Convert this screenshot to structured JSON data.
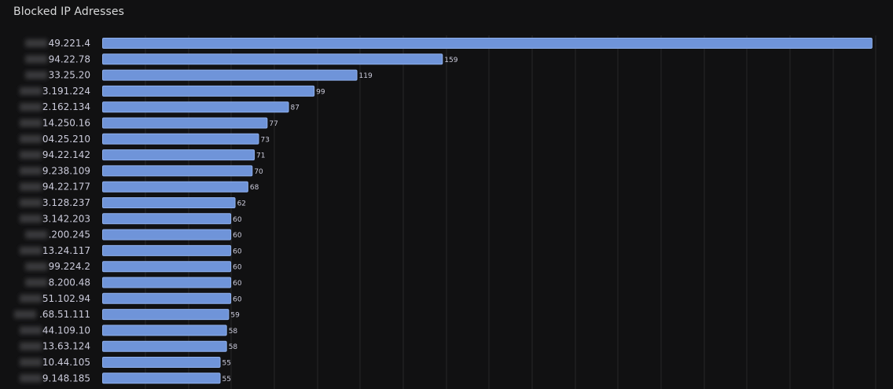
{
  "panel": {
    "title": "Blocked IP Adresses"
  },
  "colors": {
    "background": "#111112",
    "bar_fill": "#6f94d9",
    "bar_stroke": "#8fb0ec",
    "grid": "#262628",
    "text": "#ccccdc"
  },
  "chart_data": {
    "type": "bar",
    "orientation": "horizontal",
    "title": "Blocked IP Adresses",
    "categories": [
      "49.221.4",
      "94.22.78",
      "33.25.20",
      "3.191.224",
      "2.162.134",
      "14.250.16",
      "04.25.210",
      "94.22.142",
      "9.238.109",
      "94.22.177",
      "3.128.237",
      "3.142.203",
      ".200.245",
      "13.24.117",
      "99.224.2",
      "8.200.48",
      "51.102.94",
      ".68.51.111",
      "44.109.10",
      "13.63.124",
      "10.44.105",
      "9.148.185"
    ],
    "values": [
      360,
      159,
      119,
      99,
      87,
      77,
      73,
      71,
      70,
      68,
      62,
      60,
      60,
      60,
      60,
      60,
      60,
      59,
      58,
      58,
      55,
      55
    ],
    "value_labels": [
      "",
      "159",
      "119",
      "99",
      "87",
      "77",
      "73",
      "71",
      "70",
      "68",
      "62",
      "60",
      "60",
      "60",
      "60",
      "60",
      "60",
      "59",
      "58",
      "58",
      "55",
      "55"
    ],
    "xlim": [
      0,
      370
    ],
    "category_prefix_redacted": true,
    "grid": true
  }
}
